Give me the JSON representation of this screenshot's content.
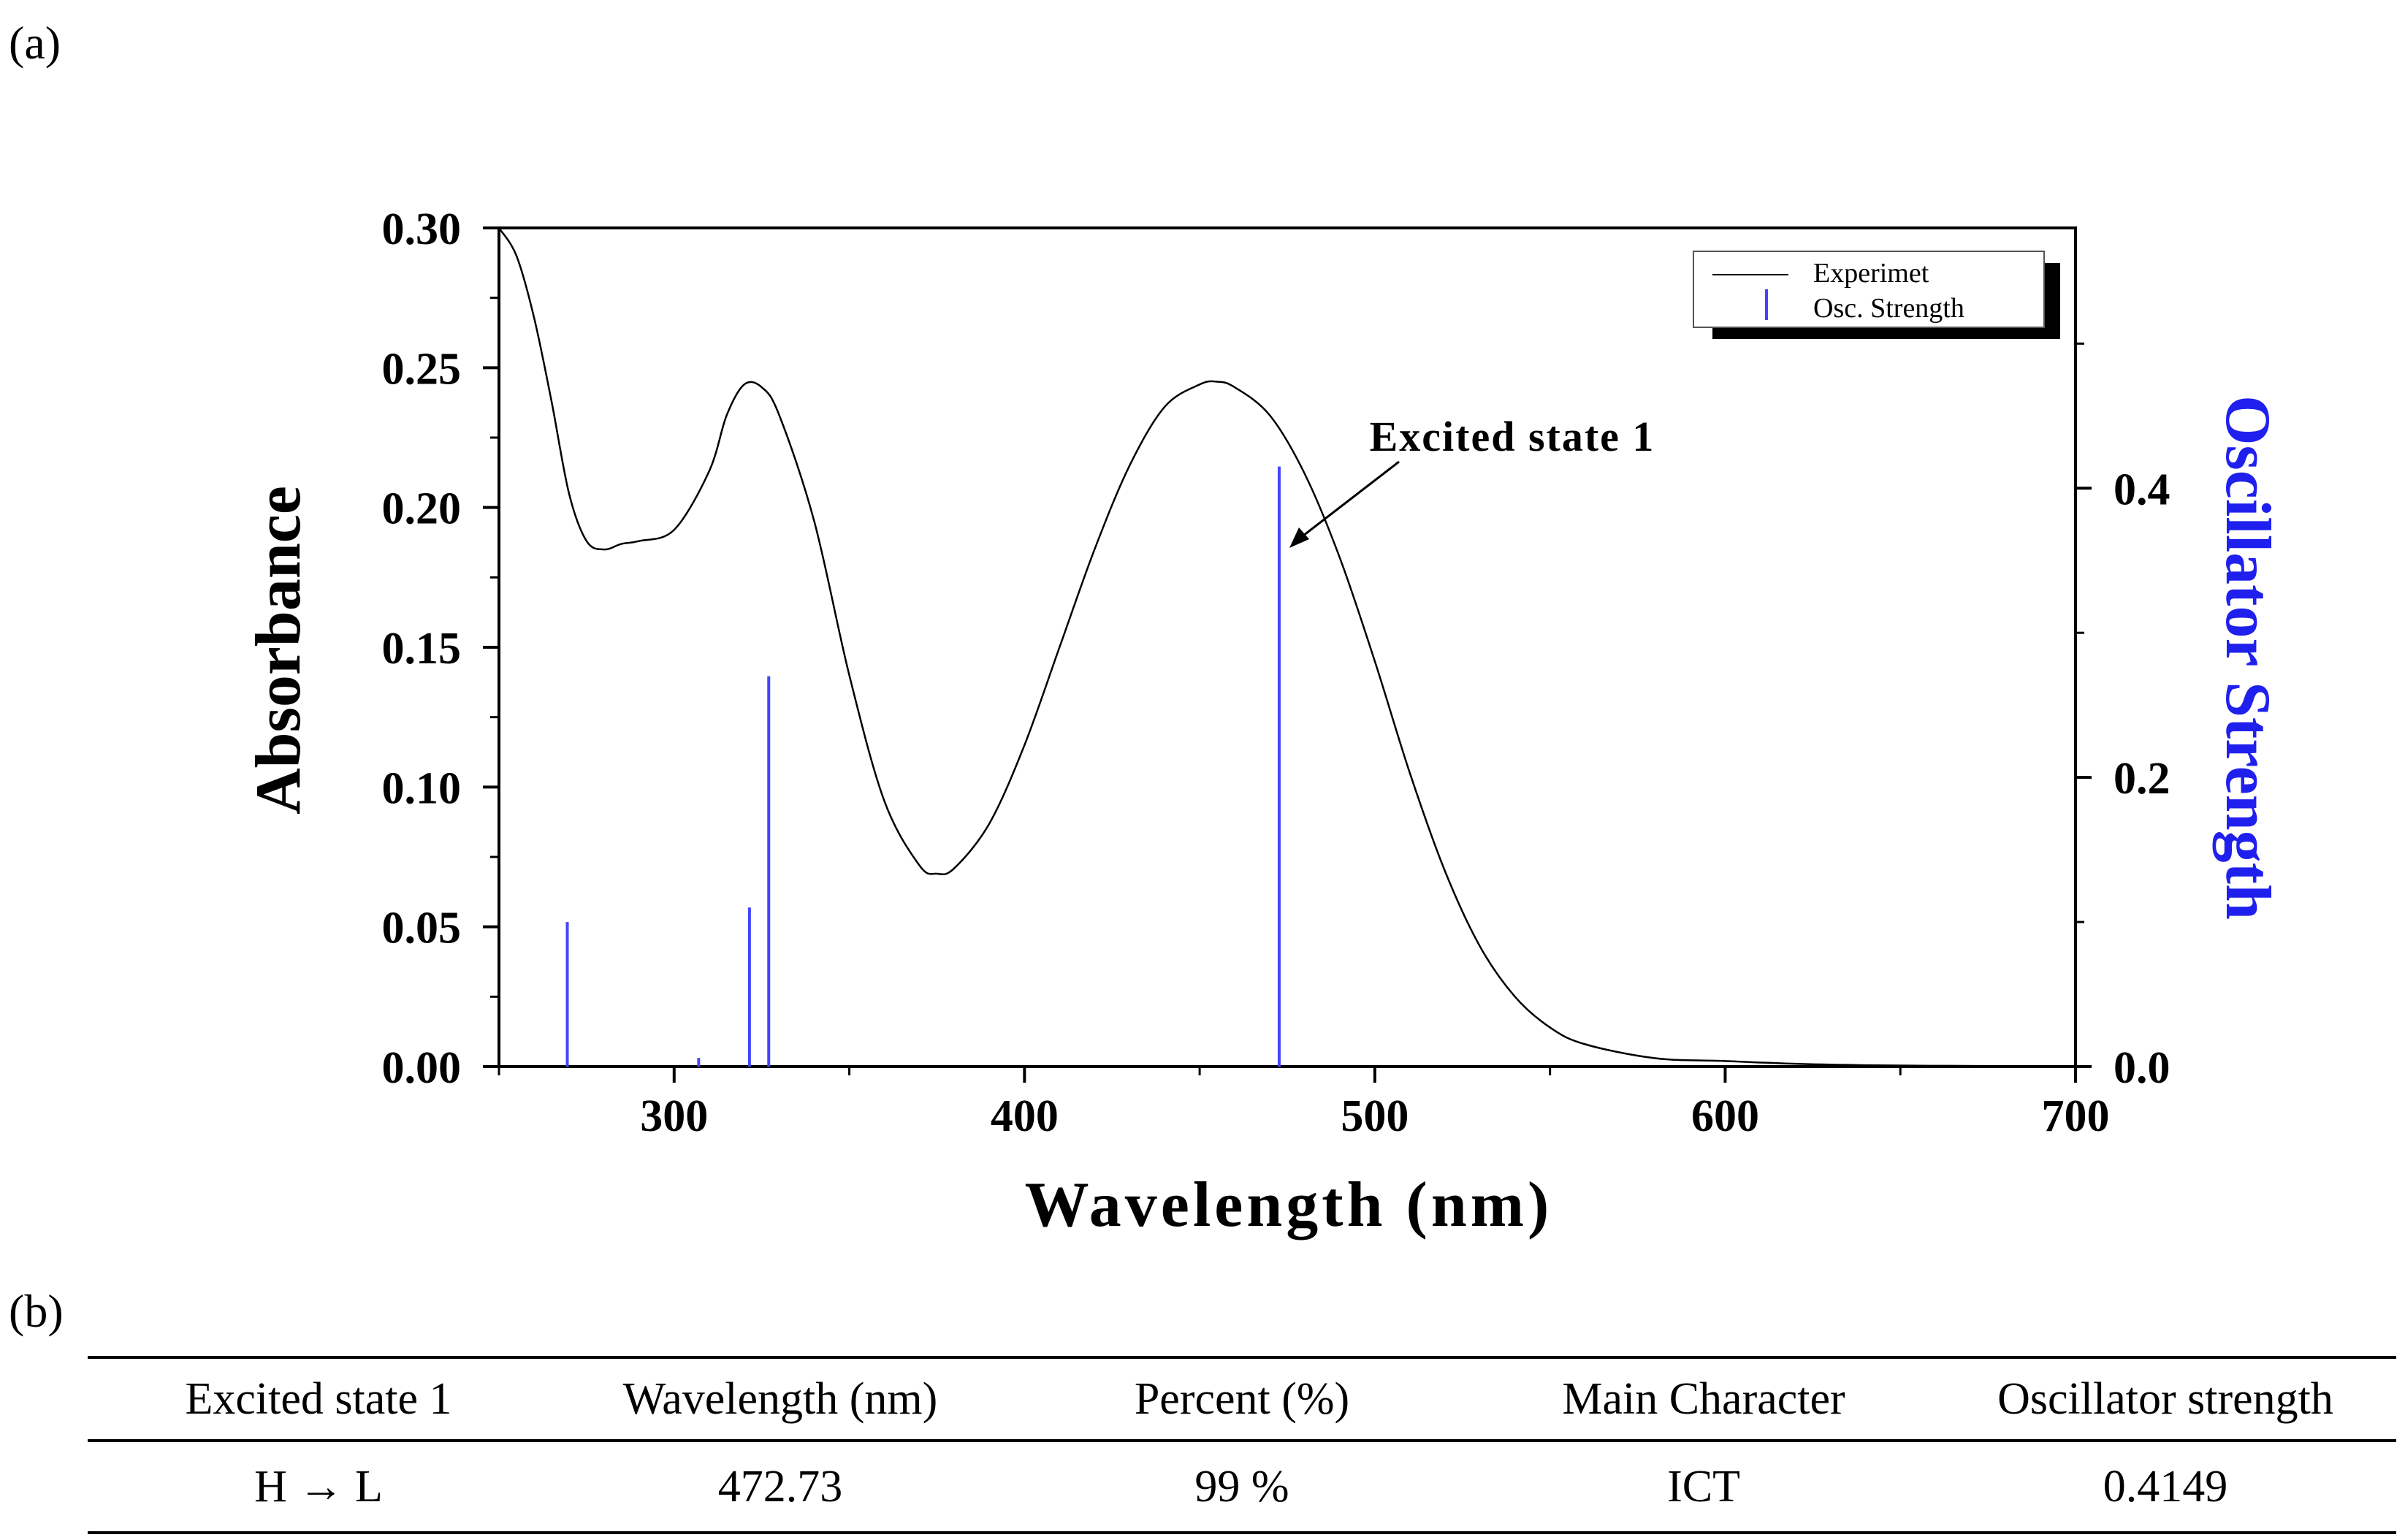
{
  "panels": {
    "a": "(a)",
    "b": "(b)"
  },
  "chart_data": {
    "type": "line",
    "xlabel": "Wavelength (nm)",
    "ylabel": "Absorbance",
    "y2label": "Oscillator Strength",
    "xlim": [
      250,
      700
    ],
    "ylim": [
      0,
      0.3
    ],
    "y2lim": [
      0,
      0.58
    ],
    "xticks": [
      300,
      400,
      500,
      600,
      700
    ],
    "yticks": [
      0.0,
      0.05,
      0.1,
      0.15,
      0.2,
      0.25,
      0.3
    ],
    "y2ticks": [
      0.0,
      0.2,
      0.4
    ],
    "legend": {
      "position": "top-right",
      "entries": [
        "Experimet",
        "Osc. Strength"
      ]
    },
    "annotation": {
      "text": "Excited state 1",
      "x": 472.7,
      "y": 0.215
    },
    "series": [
      {
        "name": "Experimet",
        "axis": "left",
        "color": "#000000",
        "x": [
          250,
          255,
          260,
          265,
          270,
          275,
          280,
          285,
          290,
          300,
          310,
          315,
          320,
          325,
          330,
          340,
          350,
          360,
          370,
          375,
          380,
          390,
          400,
          410,
          420,
          430,
          440,
          450,
          455,
          460,
          470,
          480,
          490,
          500,
          510,
          520,
          530,
          540,
          550,
          560,
          580,
          600,
          620,
          640,
          660,
          680,
          700
        ],
        "values": [
          0.3,
          0.29,
          0.268,
          0.238,
          0.205,
          0.188,
          0.185,
          0.187,
          0.188,
          0.192,
          0.213,
          0.233,
          0.244,
          0.243,
          0.233,
          0.195,
          0.14,
          0.095,
          0.072,
          0.069,
          0.071,
          0.087,
          0.115,
          0.15,
          0.185,
          0.215,
          0.236,
          0.244,
          0.245,
          0.243,
          0.233,
          0.212,
          0.182,
          0.145,
          0.105,
          0.07,
          0.043,
          0.025,
          0.014,
          0.008,
          0.003,
          0.002,
          0.001,
          0.0005,
          0.0003,
          0.0002,
          0.0001
        ]
      },
      {
        "name": "Osc. Strength",
        "axis": "right",
        "color": "#4444ff",
        "x": [
          269.5,
          307,
          321.5,
          327,
          472.7
        ],
        "values": [
          0.1,
          0.006,
          0.11,
          0.27,
          0.415
        ]
      }
    ]
  },
  "table": {
    "headers": [
      "Excited state 1",
      "Wavelength (nm)",
      "Percent (%)",
      "Main Character",
      "Oscillator strength"
    ],
    "rows": [
      [
        "H → L",
        "472.73",
        "99 %",
        "ICT",
        "0.4149"
      ]
    ]
  }
}
